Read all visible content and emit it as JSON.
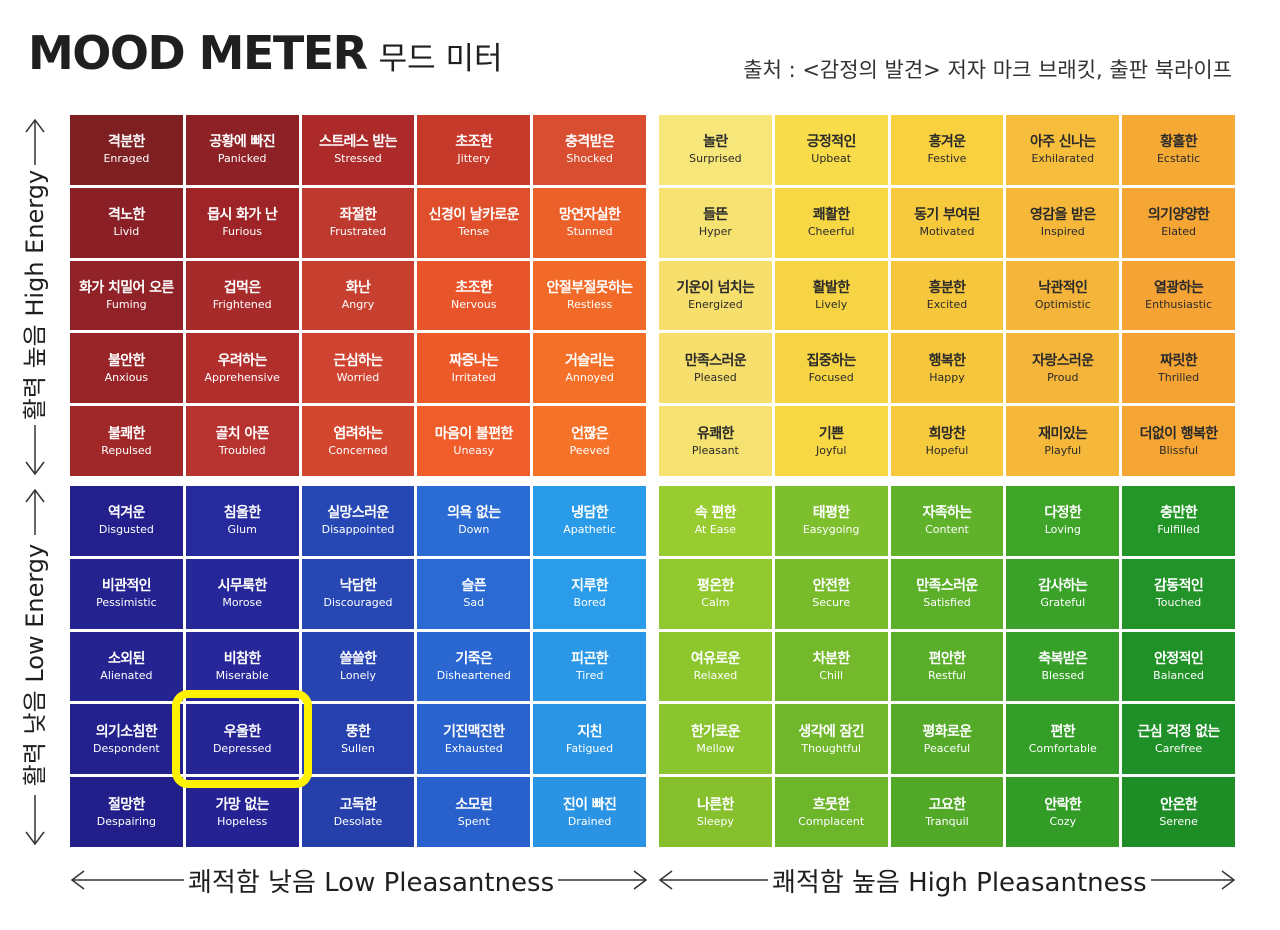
{
  "title": {
    "main": "MOOD METER",
    "sub": "무드 미터"
  },
  "source": "출처 : <감정의 발견> 저자 마크 브래킷, 출판 북라이프",
  "axes": {
    "high_energy": "활력 높음 High Energy",
    "low_energy": "활력 낮음 Low Energy",
    "low_pleasantness": "쾌적함 낮음 Low Pleasantness",
    "high_pleasantness": "쾌적함 높음 High Pleasantness"
  },
  "highlighted": "Depressed",
  "quadrants": {
    "red": {
      "text_style": "dark",
      "colors": [
        [
          "#7e1f22",
          "#8e2126",
          "#ac2b2a",
          "#c63a2b",
          "#d94e30"
        ],
        [
          "#8a2025",
          "#9e2428",
          "#bf3a2e",
          "#df4f2b",
          "#ec612a"
        ],
        [
          "#912227",
          "#a82b2c",
          "#c73f2f",
          "#e8552a",
          "#f26a28"
        ],
        [
          "#982428",
          "#b02f2d",
          "#cf4430",
          "#ed5a2a",
          "#f47028"
        ],
        [
          "#a02829",
          "#b73330",
          "#d4472f",
          "#f05c2a",
          "#f57228"
        ]
      ],
      "rows": [
        [
          {
            "ko": "격분한",
            "en": "Enraged"
          },
          {
            "ko": "공황에 빠진",
            "en": "Panicked"
          },
          {
            "ko": "스트레스 받는",
            "en": "Stressed"
          },
          {
            "ko": "초조한",
            "en": "Jittery"
          },
          {
            "ko": "충격받은",
            "en": "Shocked"
          }
        ],
        [
          {
            "ko": "격노한",
            "en": "Livid"
          },
          {
            "ko": "몹시 화가 난",
            "en": "Furious"
          },
          {
            "ko": "좌절한",
            "en": "Frustrated"
          },
          {
            "ko": "신경이 날카로운",
            "en": "Tense"
          },
          {
            "ko": "망연자실한",
            "en": "Stunned"
          }
        ],
        [
          {
            "ko": "화가 치밀어 오른",
            "en": "Fuming"
          },
          {
            "ko": "겁먹은",
            "en": "Frightened"
          },
          {
            "ko": "화난",
            "en": "Angry"
          },
          {
            "ko": "초조한",
            "en": "Nervous"
          },
          {
            "ko": "안절부절못하는",
            "en": "Restless"
          }
        ],
        [
          {
            "ko": "불안한",
            "en": "Anxious"
          },
          {
            "ko": "우려하는",
            "en": "Apprehensive"
          },
          {
            "ko": "근심하는",
            "en": "Worried"
          },
          {
            "ko": "짜증나는",
            "en": "Irritated"
          },
          {
            "ko": "거슬리는",
            "en": "Annoyed"
          }
        ],
        [
          {
            "ko": "불쾌한",
            "en": "Repulsed"
          },
          {
            "ko": "골치 아픈",
            "en": "Troubled"
          },
          {
            "ko": "염려하는",
            "en": "Concerned"
          },
          {
            "ko": "마음이 불편한",
            "en": "Uneasy"
          },
          {
            "ko": "언짢은",
            "en": "Peeved"
          }
        ]
      ]
    },
    "yellow": {
      "text_style": "light",
      "colors": [
        [
          "#f7e67a",
          "#f8dc4a",
          "#f8d040",
          "#f6be3c",
          "#f5aa35"
        ],
        [
          "#f6e270",
          "#f7d744",
          "#f7ca3d",
          "#f5b83a",
          "#f4a534"
        ],
        [
          "#f6df6c",
          "#f6d443",
          "#f6c73d",
          "#f4b53a",
          "#f4a334"
        ],
        [
          "#f6df6c",
          "#f6d443",
          "#f6c73d",
          "#f4b53a",
          "#f4a334"
        ],
        [
          "#f6e270",
          "#f7d744",
          "#f7ca3d",
          "#f5b83a",
          "#f4a534"
        ]
      ],
      "rows": [
        [
          {
            "ko": "놀란",
            "en": "Surprised"
          },
          {
            "ko": "긍정적인",
            "en": "Upbeat"
          },
          {
            "ko": "흥겨운",
            "en": "Festive"
          },
          {
            "ko": "아주 신나는",
            "en": "Exhilarated"
          },
          {
            "ko": "황홀한",
            "en": "Ecstatic"
          }
        ],
        [
          {
            "ko": "들뜬",
            "en": "Hyper"
          },
          {
            "ko": "쾌활한",
            "en": "Cheerful"
          },
          {
            "ko": "동기 부여된",
            "en": "Motivated"
          },
          {
            "ko": "영감을 받은",
            "en": "Inspired"
          },
          {
            "ko": "의기양양한",
            "en": "Elated"
          }
        ],
        [
          {
            "ko": "기운이 넘치는",
            "en": "Energized"
          },
          {
            "ko": "활발한",
            "en": "Lively"
          },
          {
            "ko": "흥분한",
            "en": "Excited"
          },
          {
            "ko": "낙관적인",
            "en": "Optimistic"
          },
          {
            "ko": "열광하는",
            "en": "Enthusiastic"
          }
        ],
        [
          {
            "ko": "만족스러운",
            "en": "Pleased"
          },
          {
            "ko": "집중하는",
            "en": "Focused"
          },
          {
            "ko": "행복한",
            "en": "Happy"
          },
          {
            "ko": "자랑스러운",
            "en": "Proud"
          },
          {
            "ko": "짜릿한",
            "en": "Thrilled"
          }
        ],
        [
          {
            "ko": "유쾌한",
            "en": "Pleasant"
          },
          {
            "ko": "기쁜",
            "en": "Joyful"
          },
          {
            "ko": "희망찬",
            "en": "Hopeful"
          },
          {
            "ko": "재미있는",
            "en": "Playful"
          },
          {
            "ko": "더없이 행복한",
            "en": "Blissful"
          }
        ]
      ]
    },
    "blue": {
      "text_style": "dark",
      "colors": [
        [
          "#23208d",
          "#262a9c",
          "#2648b4",
          "#2a6bd4",
          "#2a9be8"
        ],
        [
          "#24238f",
          "#26289a",
          "#2747b2",
          "#2b6ad2",
          "#2a9ce9"
        ],
        [
          "#24238f",
          "#27279a",
          "#2744b0",
          "#2a67d0",
          "#2a98e6"
        ],
        [
          "#23218d",
          "#262596",
          "#2641ad",
          "#2963cd",
          "#2a95e4"
        ],
        [
          "#221f8a",
          "#252394",
          "#253fab",
          "#2961cc",
          "#2a93e3"
        ]
      ],
      "rows": [
        [
          {
            "ko": "역겨운",
            "en": "Disgusted"
          },
          {
            "ko": "침울한",
            "en": "Glum"
          },
          {
            "ko": "실망스러운",
            "en": "Disappointed"
          },
          {
            "ko": "의욕 없는",
            "en": "Down"
          },
          {
            "ko": "냉담한",
            "en": "Apathetic"
          }
        ],
        [
          {
            "ko": "비관적인",
            "en": "Pessimistic"
          },
          {
            "ko": "시무룩한",
            "en": "Morose"
          },
          {
            "ko": "낙담한",
            "en": "Discouraged"
          },
          {
            "ko": "슬픈",
            "en": "Sad"
          },
          {
            "ko": "지루한",
            "en": "Bored"
          }
        ],
        [
          {
            "ko": "소외된",
            "en": "Alienated"
          },
          {
            "ko": "비참한",
            "en": "Miserable"
          },
          {
            "ko": "쓸쓸한",
            "en": "Lonely"
          },
          {
            "ko": "기죽은",
            "en": "Disheartened"
          },
          {
            "ko": "피곤한",
            "en": "Tired"
          }
        ],
        [
          {
            "ko": "의기소침한",
            "en": "Despondent"
          },
          {
            "ko": "우울한",
            "en": "Depressed"
          },
          {
            "ko": "뚱한",
            "en": "Sullen"
          },
          {
            "ko": "기진맥진한",
            "en": "Exhausted"
          },
          {
            "ko": "지친",
            "en": "Fatigued"
          }
        ],
        [
          {
            "ko": "절망한",
            "en": "Despairing"
          },
          {
            "ko": "가망 없는",
            "en": "Hopeless"
          },
          {
            "ko": "고독한",
            "en": "Desolate"
          },
          {
            "ko": "소모된",
            "en": "Spent"
          },
          {
            "ko": "진이 빠진",
            "en": "Drained"
          }
        ]
      ]
    },
    "green": {
      "text_style": "dark",
      "colors": [
        [
          "#98cc30",
          "#7dbf2d",
          "#60b22a",
          "#3ea528",
          "#249628"
        ],
        [
          "#92c92f",
          "#78bc2c",
          "#5cb029",
          "#3aa228",
          "#229328"
        ],
        [
          "#8ec62e",
          "#74b92b",
          "#58ad29",
          "#37a028",
          "#209127"
        ],
        [
          "#8ac42e",
          "#70b72b",
          "#55ab29",
          "#359e28",
          "#1f8f27"
        ],
        [
          "#86c12d",
          "#6db52a",
          "#52a928",
          "#339c27",
          "#1e8d26"
        ]
      ],
      "rows": [
        [
          {
            "ko": "속 편한",
            "en": "At Ease"
          },
          {
            "ko": "태평한",
            "en": "Easygoing"
          },
          {
            "ko": "자족하는",
            "en": "Content"
          },
          {
            "ko": "다정한",
            "en": "Loving"
          },
          {
            "ko": "충만한",
            "en": "Fulfilled"
          }
        ],
        [
          {
            "ko": "평온한",
            "en": "Calm"
          },
          {
            "ko": "안전한",
            "en": "Secure"
          },
          {
            "ko": "만족스러운",
            "en": "Satisfied"
          },
          {
            "ko": "감사하는",
            "en": "Grateful"
          },
          {
            "ko": "감동적인",
            "en": "Touched"
          }
        ],
        [
          {
            "ko": "여유로운",
            "en": "Relaxed"
          },
          {
            "ko": "차분한",
            "en": "Chill"
          },
          {
            "ko": "편안한",
            "en": "Restful"
          },
          {
            "ko": "축복받은",
            "en": "Blessed"
          },
          {
            "ko": "안정적인",
            "en": "Balanced"
          }
        ],
        [
          {
            "ko": "한가로운",
            "en": "Mellow"
          },
          {
            "ko": "생각에 잠긴",
            "en": "Thoughtful"
          },
          {
            "ko": "평화로운",
            "en": "Peaceful"
          },
          {
            "ko": "편한",
            "en": "Comfortable"
          },
          {
            "ko": "근심 걱정 없는",
            "en": "Carefree"
          }
        ],
        [
          {
            "ko": "나른한",
            "en": "Sleepy"
          },
          {
            "ko": "흐뭇한",
            "en": "Complacent"
          },
          {
            "ko": "고요한",
            "en": "Tranquil"
          },
          {
            "ko": "안락한",
            "en": "Cozy"
          },
          {
            "ko": "안온한",
            "en": "Serene"
          }
        ]
      ]
    }
  }
}
